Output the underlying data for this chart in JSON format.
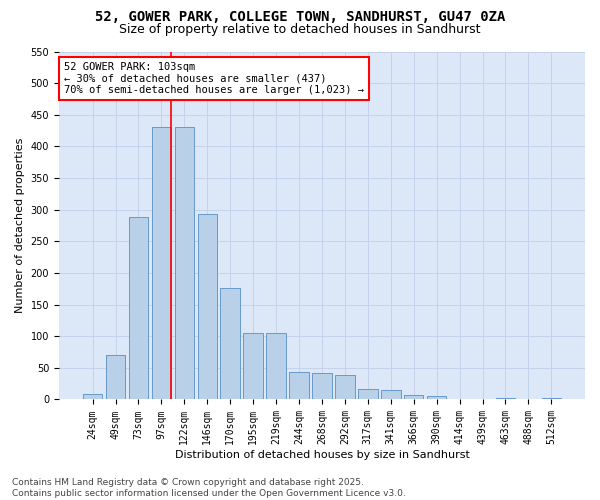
{
  "title_line1": "52, GOWER PARK, COLLEGE TOWN, SANDHURST, GU47 0ZA",
  "title_line2": "Size of property relative to detached houses in Sandhurst",
  "xlabel": "Distribution of detached houses by size in Sandhurst",
  "ylabel": "Number of detached properties",
  "bar_labels": [
    "24sqm",
    "49sqm",
    "73sqm",
    "97sqm",
    "122sqm",
    "146sqm",
    "170sqm",
    "195sqm",
    "219sqm",
    "244sqm",
    "268sqm",
    "292sqm",
    "317sqm",
    "341sqm",
    "366sqm",
    "390sqm",
    "414sqm",
    "439sqm",
    "463sqm",
    "488sqm",
    "512sqm"
  ],
  "bar_values": [
    8,
    71,
    288,
    430,
    430,
    293,
    176,
    105,
    105,
    44,
    42,
    39,
    16,
    15,
    7,
    5,
    0,
    0,
    3,
    0,
    3
  ],
  "bar_color": "#b8d0e8",
  "bar_edgecolor": "#6699cc",
  "vline_index": 3,
  "vline_color": "red",
  "annotation_text": "52 GOWER PARK: 103sqm\n← 30% of detached houses are smaller (437)\n70% of semi-detached houses are larger (1,023) →",
  "annotation_box_edgecolor": "red",
  "annotation_box_facecolor": "white",
  "ylim": [
    0,
    550
  ],
  "yticks": [
    0,
    50,
    100,
    150,
    200,
    250,
    300,
    350,
    400,
    450,
    500,
    550
  ],
  "grid_color": "#c0d0e8",
  "background_color": "#dce8f8",
  "footer_text": "Contains HM Land Registry data © Crown copyright and database right 2025.\nContains public sector information licensed under the Open Government Licence v3.0.",
  "title_fontsize": 10,
  "subtitle_fontsize": 9,
  "axis_label_fontsize": 8,
  "tick_fontsize": 7,
  "annotation_fontsize": 7.5,
  "footer_fontsize": 6.5
}
